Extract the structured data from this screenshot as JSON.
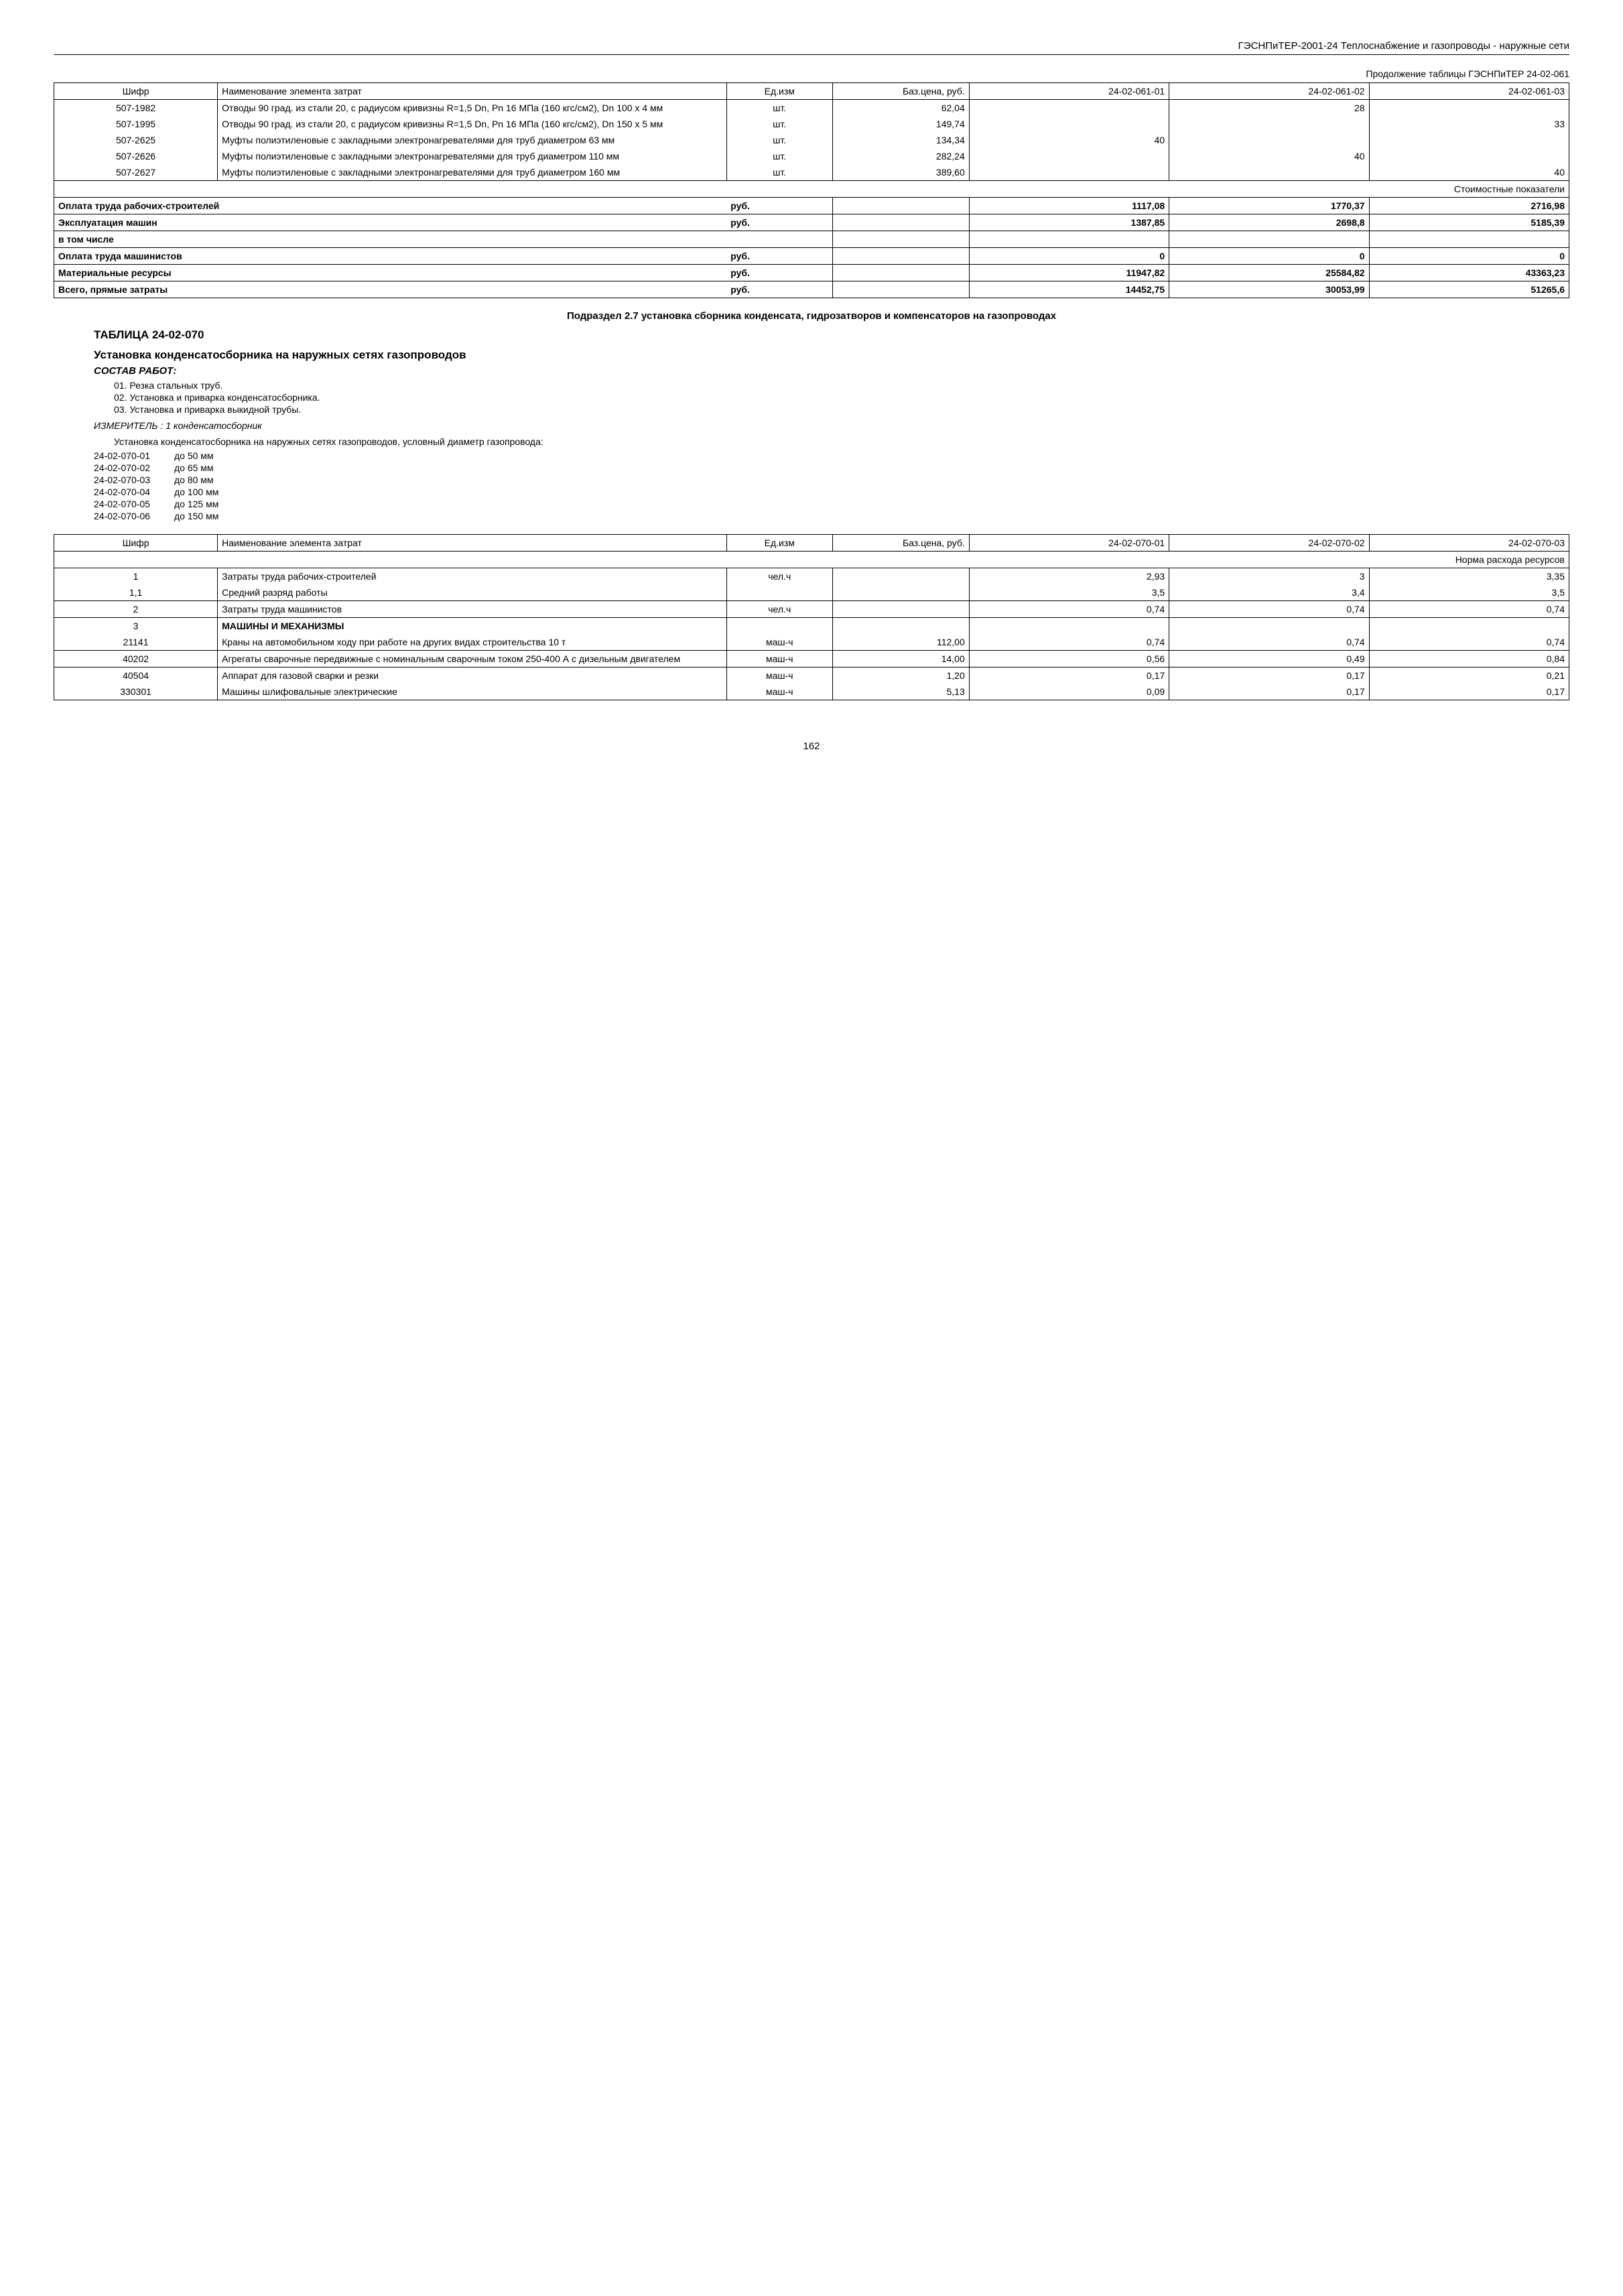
{
  "header": "ГЭСНПиТЕР-2001-24 Теплоснабжение и газопроводы - наружные сети",
  "table1": {
    "continuation": "Продолжение таблицы ГЭСНПиТЕР 24-02-061",
    "headers": {
      "shift": "Шифр",
      "name": "Наименование элемента затрат",
      "unit": "Ед.изм",
      "price": "Баз.цена, руб.",
      "col1": "24-02-061-01",
      "col2": "24-02-061-02",
      "col3": "24-02-061-03"
    },
    "rows": [
      {
        "shift": "507-1982",
        "name": "Отводы 90 град. из стали 20, с радиусом кривизны R=1,5 Dn, Pn 16 МПа (160 кгс/см2), Dn 100 x 4 мм",
        "unit": "шт.",
        "price": "62,04",
        "c1": "",
        "c2": "28",
        "c3": ""
      },
      {
        "shift": "507-1995",
        "name": "Отводы 90 град. из стали 20, с радиусом кривизны R=1,5 Dn, Pn 16 МПа (160 кгс/см2), Dn 150 x 5 мм",
        "unit": "шт.",
        "price": "149,74",
        "c1": "",
        "c2": "",
        "c3": "33"
      },
      {
        "shift": "507-2625",
        "name": "Муфты полиэтиленовые с закладными электронагревателями для труб диаметром 63 мм",
        "unit": "шт.",
        "price": "134,34",
        "c1": "40",
        "c2": "",
        "c3": ""
      },
      {
        "shift": "507-2626",
        "name": "Муфты полиэтиленовые с закладными электронагревателями для труб диаметром 110 мм",
        "unit": "шт.",
        "price": "282,24",
        "c1": "",
        "c2": "40",
        "c3": ""
      },
      {
        "shift": "507-2627",
        "name": "Муфты полиэтиленовые с закладными электронагревателями для труб диаметром 160 мм",
        "unit": "шт.",
        "price": "389,60",
        "c1": "",
        "c2": "",
        "c3": "40"
      }
    ],
    "cost_header": "Стоимостные показатели",
    "cost_rows": [
      {
        "name": "Оплата труда рабочих-строителей",
        "unit": "руб.",
        "c1": "1117,08",
        "c2": "1770,37",
        "c3": "2716,98"
      },
      {
        "name": "Эксплуатация машин",
        "unit": "руб.",
        "c1": "1387,85",
        "c2": "2698,8",
        "c3": "5185,39"
      },
      {
        "name": "в том числе",
        "unit": "",
        "c1": "",
        "c2": "",
        "c3": ""
      },
      {
        "name": "Оплата труда машинистов",
        "unit": "руб.",
        "c1": "0",
        "c2": "0",
        "c3": "0"
      },
      {
        "name": "Материальные ресурсы",
        "unit": "руб.",
        "c1": "11947,82",
        "c2": "25584,82",
        "c3": "43363,23"
      },
      {
        "name": "Всего, прямые затраты",
        "unit": "руб.",
        "c1": "14452,75",
        "c2": "30053,99",
        "c3": "51265,6"
      }
    ]
  },
  "subsection": "Подраздел 2.7 установка сборника конденсата, гидрозатворов и компенсаторов на газопроводах",
  "table_title": "ТАБЛИЦА 24-02-070",
  "install_title": "Установка конденсатосборника на наружных сетях газопроводов",
  "sostav": "СОСТАВ РАБОТ:",
  "works": [
    "01. Резка стальных труб.",
    "02. Установка и приварка конденсатосборника.",
    "03. Установка и приварка выкидной трубы."
  ],
  "izmeritel": "ИЗМЕРИТЕЛЬ : 1 конденсатосборник",
  "install_desc": "Установка конденсатосборника на наружных сетях газопроводов, условный диаметр газопровода:",
  "codes": [
    {
      "code": "24-02-070-01",
      "label": "до 50 мм"
    },
    {
      "code": "24-02-070-02",
      "label": "до 65 мм"
    },
    {
      "code": "24-02-070-03",
      "label": "до 80 мм"
    },
    {
      "code": "24-02-070-04",
      "label": "до 100 мм"
    },
    {
      "code": "24-02-070-05",
      "label": "до 125 мм"
    },
    {
      "code": "24-02-070-06",
      "label": "до 150 мм"
    }
  ],
  "table2": {
    "headers": {
      "shift": "Шифр",
      "name": "Наименование элемента затрат",
      "unit": "Ед.изм",
      "price": "Баз.цена, руб.",
      "col1": "24-02-070-01",
      "col2": "24-02-070-02",
      "col3": "24-02-070-03"
    },
    "norm_header": "Норма расхода ресурсов",
    "rows": [
      {
        "shift": "1",
        "name": "Затраты труда рабочих-строителей",
        "unit": "чел.ч",
        "price": "",
        "c1": "2,93",
        "c2": "3",
        "c3": "3,35"
      },
      {
        "shift": "1,1",
        "name": "Средний разряд работы",
        "unit": "",
        "price": "",
        "c1": "3,5",
        "c2": "3,4",
        "c3": "3,5"
      },
      {
        "shift": "2",
        "name": "Затраты труда машинистов",
        "unit": "чел.ч",
        "price": "",
        "c1": "0,74",
        "c2": "0,74",
        "c3": "0,74"
      },
      {
        "shift": "3",
        "name": "МАШИНЫ И МЕХАНИЗМЫ",
        "unit": "",
        "price": "",
        "c1": "",
        "c2": "",
        "c3": "",
        "bold": true
      },
      {
        "shift": "21141",
        "name": "Краны на автомобильном ходу при работе на других видах строительства 10 т",
        "unit": "маш-ч",
        "price": "112,00",
        "c1": "0,74",
        "c2": "0,74",
        "c3": "0,74"
      },
      {
        "shift": "40202",
        "name": "Агрегаты сварочные передвижные с номинальным сварочным током 250-400 А с дизельным двигателем",
        "unit": "маш-ч",
        "price": "14,00",
        "c1": "0,56",
        "c2": "0,49",
        "c3": "0,84"
      },
      {
        "shift": "40504",
        "name": "Аппарат для газовой сварки и резки",
        "unit": "маш-ч",
        "price": "1,20",
        "c1": "0,17",
        "c2": "0,17",
        "c3": "0,21"
      },
      {
        "shift": "330301",
        "name": "Машины шлифовальные электрические",
        "unit": "маш-ч",
        "price": "5,13",
        "c1": "0,09",
        "c2": "0,17",
        "c3": "0,17"
      }
    ]
  },
  "page": "162"
}
